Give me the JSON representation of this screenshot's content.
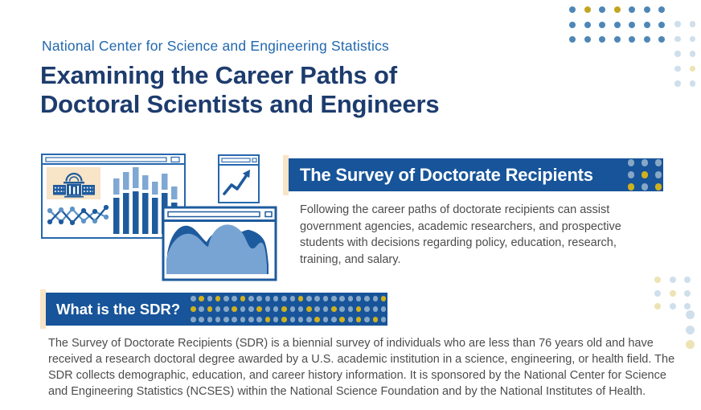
{
  "header": {
    "eyebrow": "National Center for Science and Engineering Statistics",
    "title_line1": "Examining the Career Paths of",
    "title_line2": "Doctoral Scientists and Engineers"
  },
  "survey_section": {
    "heading": "The Survey of Doctorate Recipients",
    "body": "Following the career paths of doctorate recipients can assist government agencies, academic researchers, and prospective students with decisions regarding policy, education, research, training, and salary."
  },
  "sdr_section": {
    "heading": "What is the SDR?",
    "body": "The Survey of Doctorate Recipients (SDR) is a biennial survey of individuals who are less than 76 years old and have received a research doctoral degree awarded by a U.S. academic institution in a science, engineering, or health field. The SDR collects demographic, education, and career history information. It is sponsored by the National Center for Science and Engineering Statistics (NCSES) within the National Science Foundation and by the National Institutes of Health."
  },
  "colors": {
    "navy_title": "#1d3c6e",
    "eyebrow_blue": "#2268ae",
    "banner_blue": "#17549a",
    "body_text": "#4c4c4c",
    "peach": "#f8e4c6",
    "illustration_stroke": "#2667ad",
    "illustration_dark": "#1e5b9e",
    "illustration_light": "#78a4d4",
    "dot_map": {
      "B": "#4d87b7",
      "Y": "#c2a51f",
      "L": "#cfdfeb",
      "P": "#ece4b4",
      "b": "#86a7c6",
      "y": "#d0b11d"
    }
  },
  "decorations": {
    "top_right_main": [
      "B Y B Y B B B",
      "B B B B B B B",
      "B B B B B B B"
    ],
    "top_right_side": [
      "L L",
      "L L",
      "L L",
      "L P",
      "L L"
    ],
    "survey_banner_dots": [
      "b b b",
      "b y b",
      "y b y"
    ],
    "sdr_banner_dots": [
      "b y b y b b y b b b b b b y b b b b b b b b b y",
      "y b y b b y b b y b b y b b y b b y b b y b b b",
      "b b b b b b b b b y b y b b b y b b y b y b y b"
    ],
    "mid_right_grid": [
      "P L L",
      "L P L",
      "P L L"
    ],
    "mid_right_column": [
      "L",
      "L",
      "P"
    ]
  }
}
